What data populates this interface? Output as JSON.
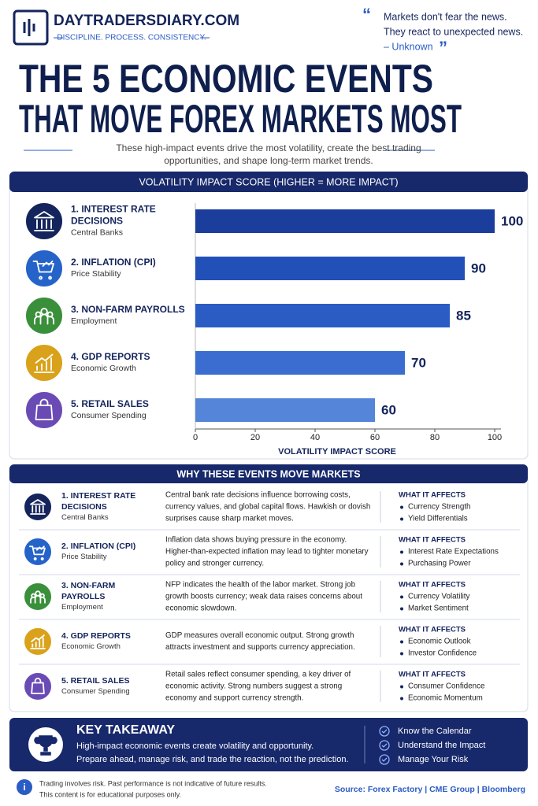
{
  "header": {
    "brand": "DAYTRADERSDIARY.COM",
    "tagline": "DISCIPLINE. PROCESS. CONSISTENCY.",
    "quote": [
      "Markets don't fear the news.",
      "They react to unexpected news."
    ],
    "quote_author": "– Unknown"
  },
  "title": [
    "THE 5 ECONOMIC EVENTS",
    "THAT MOVE FOREX MARKETS MOST"
  ],
  "intro": [
    "These high-impact events drive the most volatility, create the best trading",
    "opportunities, and shape long-term market trends."
  ],
  "chart_data": {
    "type": "bar",
    "orientation": "horizontal",
    "title": "VOLATILITY IMPACT SCORE (HIGHER = MORE IMPACT)",
    "categories": [
      "1. INTEREST RATE DECISIONS",
      "2. INFLATION (CPI)",
      "3. NON-FARM PAYROLLS",
      "4. GDP REPORTS",
      "5. RETAIL SALES"
    ],
    "category_subtitles": [
      "Central Banks",
      "Price Stability",
      "Employment",
      "Economic Growth",
      "Consumer Spending"
    ],
    "values": [
      100,
      90,
      85,
      70,
      60
    ],
    "colors": [
      "#1b3d9c",
      "#2150b8",
      "#2a5cc4",
      "#3a6dcf",
      "#5585d8"
    ],
    "xlim": [
      0,
      100
    ],
    "xticks": [
      0,
      20,
      40,
      60,
      80,
      100
    ],
    "x_label": "VOLATILITY IMPACT SCORE"
  },
  "table": {
    "title": "WHY THESE EVENTS MOVE MARKETS",
    "affects_heading": "WHAT IT AFFECTS",
    "rows": [
      {
        "description": "Central bank rate decisions influence borrowing costs, currency values, and global capital flows. Hawkish or dovish surprises cause sharp market moves.",
        "affects": [
          "Currency Strength",
          "Yield Differentials"
        ]
      },
      {
        "description": "Inflation data shows buying pressure in the economy. Higher-than-expected inflation may lead to tighter monetary policy and stronger currency.",
        "affects": [
          "Interest Rate Expectations",
          "Purchasing Power"
        ]
      },
      {
        "description": "NFP indicates the health of the labor market. Strong job growth boosts currency; weak data raises concerns about economic slowdown.",
        "affects": [
          "Currency Volatility",
          "Market Sentiment"
        ]
      },
      {
        "description": "GDP measures overall economic output. Strong growth attracts investment and supports currency appreciation.",
        "affects": [
          "Economic Outlook",
          "Investor Confidence"
        ]
      },
      {
        "description": "Retail sales reflect consumer spending, a key driver of economic activity. Strong numbers suggest a strong economy and support currency strength.",
        "affects": [
          "Consumer Confidence",
          "Economic Momentum"
        ]
      }
    ]
  },
  "takeaway": {
    "title": "KEY TAKEAWAY",
    "text": [
      "High-impact economic events create volatility and opportunity.",
      "Prepare ahead, manage risk, and trade the reaction, not the prediction."
    ],
    "checklist": [
      "Know the Calendar",
      "Understand the Impact",
      "Manage Your Risk"
    ]
  },
  "footer": {
    "disclaimer": [
      "Trading involves risk. Past performance is not indicative of future results.",
      "This content is for educational purposes only."
    ],
    "source": "Source: Forex Factory | CME Group | Bloomberg"
  }
}
